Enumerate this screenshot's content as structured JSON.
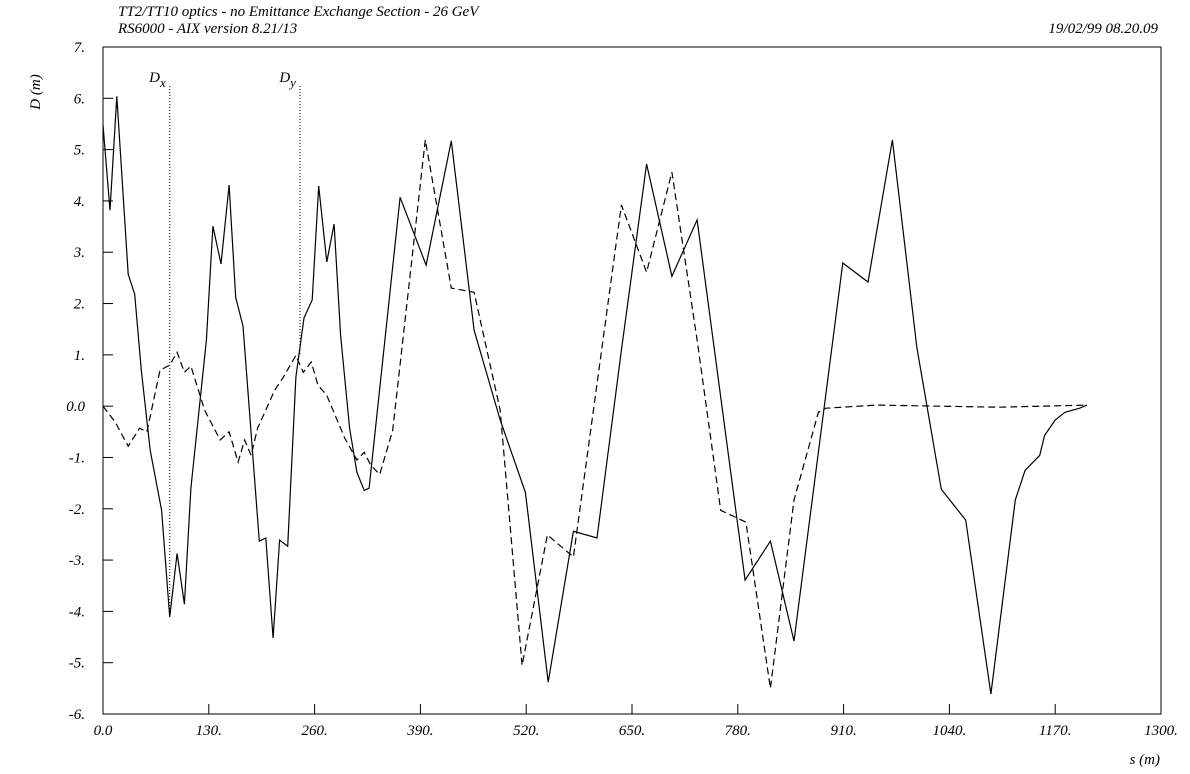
{
  "chart_data": {
    "type": "line",
    "title": "TT2/TT10 optics -  no Emittance Exchange Section - 26 GeV",
    "subtitle": "RS6000 - AIX version 8.21/13",
    "timestamp": "19/02/99  08.20.09",
    "y_label": "D (m)",
    "x_label": "s (m)",
    "xlim": [
      0,
      1300
    ],
    "ylim": [
      -6,
      7
    ],
    "xticks": [
      {
        "value": 0,
        "label": "0.0"
      },
      {
        "value": 130,
        "label": "130."
      },
      {
        "value": 260,
        "label": "260."
      },
      {
        "value": 390,
        "label": "390."
      },
      {
        "value": 520,
        "label": "520."
      },
      {
        "value": 650,
        "label": "650."
      },
      {
        "value": 780,
        "label": "780."
      },
      {
        "value": 910,
        "label": "910."
      },
      {
        "value": 1040,
        "label": "1040."
      },
      {
        "value": 1170,
        "label": "1170."
      },
      {
        "value": 1300,
        "label": "1300."
      }
    ],
    "yticks": [
      {
        "value": 7,
        "label": "7."
      },
      {
        "value": 6,
        "label": "6."
      },
      {
        "value": 5,
        "label": "5."
      },
      {
        "value": 4,
        "label": "4."
      },
      {
        "value": 3,
        "label": "3."
      },
      {
        "value": 2,
        "label": "2."
      },
      {
        "value": 1,
        "label": "1."
      },
      {
        "value": 0,
        "label": "0.0"
      },
      {
        "value": -1,
        "label": "-1."
      },
      {
        "value": -2,
        "label": "-2."
      },
      {
        "value": -3,
        "label": "-3."
      },
      {
        "value": -4,
        "label": "-4."
      },
      {
        "value": -5,
        "label": "-5."
      },
      {
        "value": -6,
        "label": "-6."
      }
    ],
    "series": [
      {
        "name": "D",
        "subscript": "x",
        "color": "#000000",
        "dash": "solid",
        "x": [
          0,
          8.6,
          17,
          31,
          39,
          47,
          58,
          72,
          82,
          91,
          100,
          108,
          127,
          135,
          145,
          155,
          163,
          172,
          192,
          200,
          209,
          217,
          227,
          237,
          247,
          257,
          265,
          275,
          284,
          292,
          303,
          312,
          321,
          327,
          365,
          397,
          428,
          456,
          488,
          519,
          547,
          578,
          607,
          637,
          668,
          699,
          730,
          789,
          820,
          849,
          909,
          940,
          970,
          1000,
          1030,
          1060,
          1091,
          1121,
          1133,
          1151,
          1157,
          1170,
          1182,
          1200,
          1209
        ],
        "values": [
          5.48,
          3.82,
          6.04,
          2.57,
          2.18,
          0.7,
          -0.86,
          -2.03,
          -4.11,
          -2.87,
          -3.86,
          -1.6,
          1.29,
          3.51,
          2.77,
          4.31,
          2.12,
          1.56,
          -2.63,
          -2.57,
          -4.52,
          -2.61,
          -2.73,
          0.57,
          1.72,
          2.07,
          4.29,
          2.81,
          3.55,
          1.38,
          -0.43,
          -1.29,
          -1.64,
          -1.6,
          4.07,
          2.75,
          5.17,
          1.48,
          -0.27,
          -1.68,
          -5.38,
          -2.44,
          -2.57,
          1.09,
          4.72,
          2.53,
          3.63,
          -3.39,
          -2.63,
          -4.58,
          2.79,
          2.42,
          5.19,
          1.15,
          -1.62,
          -2.22,
          -5.61,
          -1.83,
          -1.25,
          -0.96,
          -0.57,
          -0.27,
          -0.12,
          -0.04,
          0.02
        ]
      },
      {
        "name": "D",
        "subscript": "y",
        "color": "#000000",
        "dash": "dashed",
        "x": [
          0,
          15,
          31,
          45,
          54,
          70,
          82,
          91,
          100,
          108,
          125,
          144,
          155,
          166,
          174,
          182,
          190,
          211,
          221,
          237,
          246,
          256,
          264,
          275,
          297,
          312,
          321,
          329,
          340,
          356,
          396,
          428,
          456,
          488,
          515,
          546,
          578,
          637,
          668,
          699,
          730,
          759,
          790,
          820,
          849,
          879,
          888,
          950,
          1100,
          1209
        ],
        "values": [
          0,
          -0.31,
          -0.78,
          -0.43,
          -0.5,
          0.7,
          0.8,
          1.05,
          0.66,
          0.78,
          -0.08,
          -0.66,
          -0.5,
          -1.09,
          -0.66,
          -0.96,
          -0.43,
          0.31,
          0.55,
          0.99,
          0.66,
          0.86,
          0.41,
          0.21,
          -0.62,
          -1.05,
          -0.9,
          -1.15,
          -1.33,
          -0.47,
          5.19,
          2.3,
          2.22,
          -0.08,
          -5.05,
          -2.51,
          -2.94,
          3.92,
          2.61,
          4.56,
          1.29,
          -2.03,
          -2.26,
          -5.5,
          -1.83,
          -0.12,
          -0.04,
          0.02,
          -0.02,
          0.02
        ]
      }
    ]
  }
}
